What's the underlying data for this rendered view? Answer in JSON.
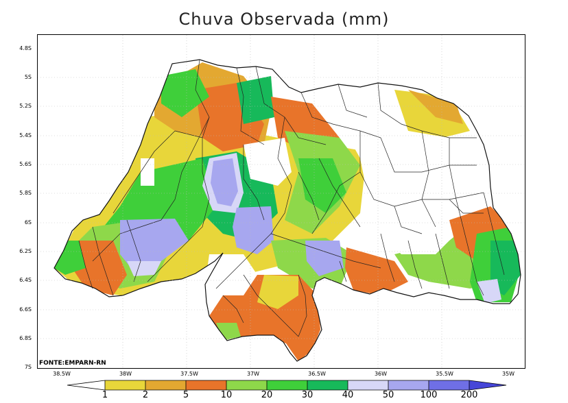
{
  "title": "Chuva Observada (mm)",
  "source": "FONTE:EMPARN-RN",
  "lat_ticks": [
    "4.8S",
    "5S",
    "5.2S",
    "5.4S",
    "5.6S",
    "5.8S",
    "6S",
    "6.2S",
    "6.4S",
    "6.6S",
    "6.8S",
    "7S"
  ],
  "lon_ticks": [
    "38.5W",
    "38W",
    "37.5W",
    "37W",
    "36.5W",
    "36W",
    "35.5W",
    "35W"
  ],
  "legend": {
    "labels": [
      "1",
      "2",
      "5",
      "10",
      "20",
      "30",
      "40",
      "50",
      "100",
      "200"
    ],
    "colors": [
      "#ffffff",
      "#e8d63a",
      "#e3a831",
      "#e8742a",
      "#8ed84a",
      "#3fcf3a",
      "#17b95a",
      "#d7d7f7",
      "#a7a7ef",
      "#6f6fe6",
      "#4646d8"
    ]
  },
  "rain_colors": {
    "white": "#ffffff",
    "yellow": "#e8d63a",
    "orange_light": "#e3a831",
    "orange": "#e8742a",
    "lime": "#8ed84a",
    "green": "#3fcf3a",
    "green_dark": "#17b95a",
    "lavender": "#d7d7f7",
    "violet": "#a7a7ef"
  }
}
